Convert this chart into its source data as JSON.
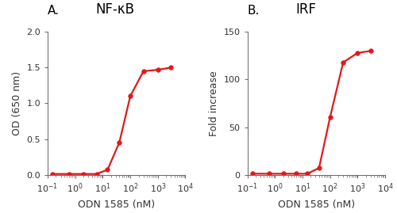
{
  "panel_A": {
    "title": "NF-κB",
    "label": "A.",
    "xlabel": "ODN 1585 (nM)",
    "ylabel": "OD (650 nm)",
    "x": [
      0.15,
      0.6,
      2,
      6,
      15,
      40,
      100,
      300,
      1000,
      3000
    ],
    "y": [
      0.01,
      0.01,
      0.01,
      0.01,
      0.07,
      0.45,
      1.1,
      1.45,
      1.47,
      1.5
    ],
    "xlim": [
      0.1,
      10000
    ],
    "ylim": [
      0,
      2.0
    ],
    "yticks": [
      0.0,
      0.5,
      1.0,
      1.5,
      2.0
    ]
  },
  "panel_B": {
    "title": "IRF",
    "label": "B.",
    "xlabel": "ODN 1585 (nM)",
    "ylabel": "Fold increase",
    "x": [
      0.15,
      0.6,
      2,
      6,
      15,
      40,
      100,
      300,
      1000,
      3000
    ],
    "y": [
      1,
      1,
      1,
      1,
      1,
      7,
      60,
      118,
      128,
      130
    ],
    "xlim": [
      0.1,
      10000
    ],
    "ylim": [
      0,
      150
    ],
    "yticks": [
      0,
      50,
      100,
      150
    ]
  },
  "line_color": "#e0191b",
  "marker": "o",
  "marker_size": 4,
  "line_width": 1.6,
  "title_fontsize": 12,
  "label_fontsize": 11,
  "tick_fontsize": 8,
  "axis_label_fontsize": 9
}
